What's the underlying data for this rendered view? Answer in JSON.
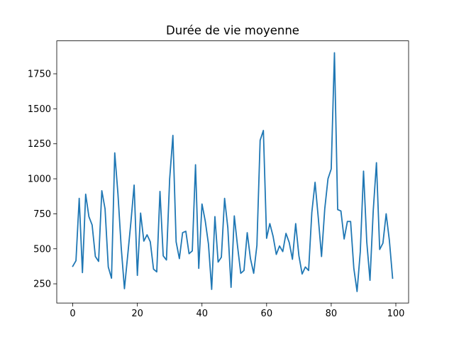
{
  "chart_data": {
    "type": "line",
    "title": "Durée de vie moyenne",
    "xlabel": "",
    "ylabel": "",
    "xlim": [
      -4.95,
      103.95
    ],
    "ylim": [
      112.8,
      1985.2
    ],
    "grid": false,
    "line_color": "#1f77b4",
    "x_ticks": [
      0,
      20,
      40,
      60,
      80,
      100
    ],
    "x_tick_labels": [
      "0",
      "20",
      "40",
      "60",
      "80",
      "100"
    ],
    "y_ticks": [
      250,
      500,
      750,
      1000,
      1250,
      1500,
      1750
    ],
    "y_tick_labels": [
      "250",
      "500",
      "750",
      "1000",
      "1250",
      "1500",
      "1750"
    ],
    "series": [
      {
        "name": "",
        "x": [
          0,
          1,
          2,
          3,
          4,
          5,
          6,
          7,
          8,
          9,
          10,
          11,
          12,
          13,
          14,
          15,
          16,
          17,
          18,
          19,
          20,
          21,
          22,
          23,
          24,
          25,
          26,
          27,
          28,
          29,
          30,
          31,
          32,
          33,
          34,
          35,
          36,
          37,
          38,
          39,
          40,
          41,
          42,
          43,
          44,
          45,
          46,
          47,
          48,
          49,
          50,
          51,
          52,
          53,
          54,
          55,
          56,
          57,
          58,
          59,
          60,
          61,
          62,
          63,
          64,
          65,
          66,
          67,
          68,
          69,
          70,
          71,
          72,
          73,
          74,
          75,
          76,
          77,
          78,
          79,
          80,
          81,
          82,
          83,
          84,
          85,
          86,
          87,
          88,
          89,
          90,
          91,
          92,
          93,
          94,
          95,
          96,
          97,
          98,
          99
        ],
        "values": [
          375,
          415,
          860,
          330,
          890,
          730,
          670,
          445,
          410,
          915,
          785,
          370,
          290,
          1185,
          890,
          510,
          215,
          450,
          690,
          955,
          310,
          755,
          555,
          600,
          550,
          355,
          335,
          910,
          450,
          420,
          1000,
          1310,
          550,
          430,
          615,
          625,
          465,
          485,
          1100,
          360,
          820,
          700,
          535,
          210,
          730,
          405,
          440,
          860,
          650,
          225,
          735,
          520,
          325,
          345,
          615,
          430,
          325,
          525,
          1275,
          1345,
          575,
          680,
          590,
          460,
          520,
          480,
          610,
          545,
          425,
          680,
          450,
          320,
          370,
          345,
          760,
          975,
          720,
          445,
          785,
          1000,
          1070,
          1900,
          780,
          770,
          570,
          695,
          695,
          360,
          195,
          480,
          1055,
          550,
          275,
          770,
          1115,
          495,
          540,
          750,
          560,
          290
        ]
      }
    ]
  }
}
